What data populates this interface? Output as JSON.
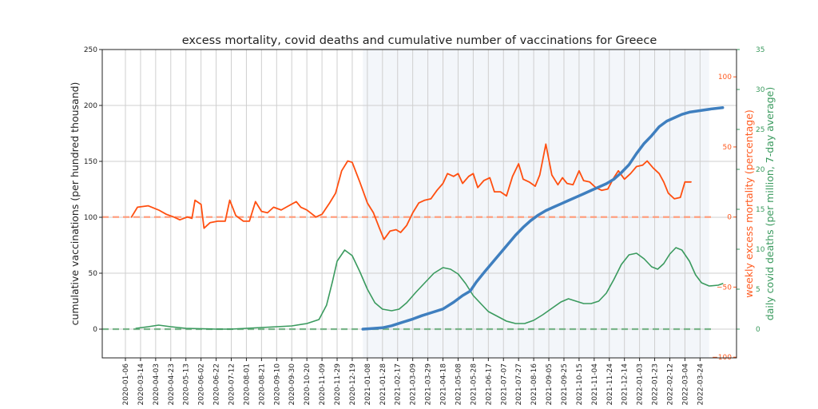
{
  "chart_data": {
    "type": "line",
    "title": "excess mortality, covid deaths and cumulative number of vaccinations for Greece",
    "xlabel": "",
    "x_tick_labels": [
      "2020-01-06",
      "2020-03-14",
      "2020-04-03",
      "2020-04-23",
      "2020-05-13",
      "2020-06-02",
      "2020-06-22",
      "2020-07-12",
      "2020-08-01",
      "2020-08-21",
      "2020-09-10",
      "2020-09-30",
      "2020-10-20",
      "2020-11-09",
      "2020-11-29",
      "2020-12-19",
      "2021-01-08",
      "2021-01-28",
      "2021-02-17",
      "2021-03-09",
      "2021-03-29",
      "2021-04-18",
      "2021-05-08",
      "2021-05-28",
      "2021-06-17",
      "2021-07-07",
      "2021-07-27",
      "2021-08-16",
      "2021-09-05",
      "2021-09-25",
      "2021-10-15",
      "2021-11-04",
      "2021-11-24",
      "2021-12-14",
      "2022-01-03",
      "2022-01-23",
      "2022-02-12",
      "2022-03-04",
      "2022-03-24"
    ],
    "x_axis_note": "x values below are positions in tick-index units (0 = first tick label)",
    "xlim_index": [
      -1.5,
      40.5
    ],
    "shaded_span_index": [
      15.7,
      38.6
    ],
    "grid": "vertical and horizontal (left axis)",
    "axes": {
      "left": {
        "label": "cumulative vaccinations (per hundred thousand)",
        "ticks": [
          0,
          50,
          100,
          150,
          200,
          250
        ],
        "ylim": [
          -25.7,
          250
        ],
        "color": "#000000"
      },
      "right_orange": {
        "label": "weekly excess mortality (percentage)",
        "ticks": [
          -100,
          -50,
          0,
          50,
          100
        ],
        "ylim": [
          -100.5,
          119.5
        ],
        "color": "#ff5a1f"
      },
      "right_green": {
        "label": "daily covid deaths (per million, 7-day average)",
        "ticks": [
          0,
          5,
          10,
          15,
          20,
          25,
          30,
          35
        ],
        "ylim": [
          -3.6,
          35
        ],
        "color": "#3a9a5e"
      }
    },
    "reference_lines": [
      {
        "axis": "right_orange",
        "value": 0,
        "style": "dashed",
        "color": "#ff9a78"
      },
      {
        "axis": "right_green",
        "value": 0,
        "style": "dashed",
        "color": "#7ab58a"
      }
    ],
    "series": [
      {
        "name": "weekly excess mortality (percentage)",
        "axis": "right_orange",
        "color": "#ff4f10",
        "points": [
          [
            0.4,
            0
          ],
          [
            0.8,
            7
          ],
          [
            1.5,
            8
          ],
          [
            2.2,
            5
          ],
          [
            2.7,
            2
          ],
          [
            3.2,
            0
          ],
          [
            3.6,
            -2
          ],
          [
            4.1,
            0
          ],
          [
            4.4,
            -1
          ],
          [
            4.6,
            12
          ],
          [
            5.0,
            9
          ],
          [
            5.2,
            -8
          ],
          [
            5.6,
            -4
          ],
          [
            6.1,
            -3
          ],
          [
            6.6,
            -3
          ],
          [
            6.9,
            12
          ],
          [
            7.3,
            1
          ],
          [
            7.8,
            -3
          ],
          [
            8.2,
            -3
          ],
          [
            8.6,
            11
          ],
          [
            9.0,
            4
          ],
          [
            9.4,
            3
          ],
          [
            9.8,
            7
          ],
          [
            10.3,
            5
          ],
          [
            10.8,
            8
          ],
          [
            11.3,
            11
          ],
          [
            11.6,
            7
          ],
          [
            12.0,
            5
          ],
          [
            12.6,
            0
          ],
          [
            13.0,
            2
          ],
          [
            13.5,
            10
          ],
          [
            13.9,
            17
          ],
          [
            14.3,
            33
          ],
          [
            14.7,
            40
          ],
          [
            15.0,
            39
          ],
          [
            15.5,
            25
          ],
          [
            16.0,
            10
          ],
          [
            16.4,
            3
          ],
          [
            16.8,
            -8
          ],
          [
            17.1,
            -16
          ],
          [
            17.5,
            -10
          ],
          [
            17.9,
            -9
          ],
          [
            18.2,
            -11
          ],
          [
            18.6,
            -6
          ],
          [
            19.0,
            3
          ],
          [
            19.4,
            10
          ],
          [
            19.8,
            12
          ],
          [
            20.2,
            13
          ],
          [
            20.6,
            19
          ],
          [
            21.0,
            24
          ],
          [
            21.3,
            31
          ],
          [
            21.7,
            29
          ],
          [
            22.0,
            31
          ],
          [
            22.3,
            24
          ],
          [
            22.7,
            29
          ],
          [
            23.0,
            31
          ],
          [
            23.3,
            21
          ],
          [
            23.7,
            26
          ],
          [
            24.1,
            28
          ],
          [
            24.4,
            18
          ],
          [
            24.8,
            18
          ],
          [
            25.2,
            15
          ],
          [
            25.6,
            29
          ],
          [
            26.0,
            38
          ],
          [
            26.3,
            27
          ],
          [
            26.7,
            25
          ],
          [
            27.1,
            22
          ],
          [
            27.4,
            30
          ],
          [
            27.8,
            52
          ],
          [
            28.2,
            30
          ],
          [
            28.6,
            23
          ],
          [
            28.9,
            28
          ],
          [
            29.2,
            24
          ],
          [
            29.6,
            23
          ],
          [
            30.0,
            33
          ],
          [
            30.3,
            26
          ],
          [
            30.7,
            25
          ],
          [
            31.1,
            21
          ],
          [
            31.5,
            19
          ],
          [
            31.9,
            20
          ],
          [
            32.3,
            28
          ],
          [
            32.6,
            33
          ],
          [
            33.0,
            27
          ],
          [
            33.4,
            31
          ],
          [
            33.8,
            36
          ],
          [
            34.2,
            37
          ],
          [
            34.5,
            40
          ],
          [
            34.9,
            35
          ],
          [
            35.3,
            31
          ],
          [
            35.6,
            25
          ],
          [
            35.9,
            17
          ],
          [
            36.3,
            13
          ],
          [
            36.7,
            14
          ],
          [
            37.0,
            25
          ],
          [
            37.4,
            25
          ]
        ]
      },
      {
        "name": "daily covid deaths (per million, 7-day average)",
        "axis": "right_green",
        "color": "#3a9a5e",
        "points": [
          [
            0.7,
            0.1
          ],
          [
            1.5,
            0.3
          ],
          [
            2.2,
            0.5
          ],
          [
            3.0,
            0.3
          ],
          [
            4.0,
            0.1
          ],
          [
            5.0,
            0.05
          ],
          [
            6.0,
            0.0
          ],
          [
            7.0,
            0.0
          ],
          [
            8.0,
            0.1
          ],
          [
            9.0,
            0.2
          ],
          [
            10.0,
            0.3
          ],
          [
            11.0,
            0.4
          ],
          [
            12.0,
            0.7
          ],
          [
            12.8,
            1.2
          ],
          [
            13.3,
            3.0
          ],
          [
            13.7,
            6.0
          ],
          [
            14.0,
            8.5
          ],
          [
            14.5,
            9.9
          ],
          [
            15.0,
            9.2
          ],
          [
            15.5,
            7.2
          ],
          [
            16.0,
            5.0
          ],
          [
            16.5,
            3.3
          ],
          [
            17.0,
            2.5
          ],
          [
            17.6,
            2.3
          ],
          [
            18.1,
            2.5
          ],
          [
            18.6,
            3.3
          ],
          [
            19.2,
            4.6
          ],
          [
            19.8,
            5.8
          ],
          [
            20.4,
            7.0
          ],
          [
            21.0,
            7.7
          ],
          [
            21.5,
            7.5
          ],
          [
            22.0,
            6.9
          ],
          [
            22.5,
            5.7
          ],
          [
            23.0,
            4.2
          ],
          [
            23.6,
            3.0
          ],
          [
            24.0,
            2.2
          ],
          [
            24.6,
            1.6
          ],
          [
            25.2,
            1.0
          ],
          [
            25.8,
            0.7
          ],
          [
            26.4,
            0.7
          ],
          [
            27.0,
            1.1
          ],
          [
            27.6,
            1.8
          ],
          [
            28.2,
            2.6
          ],
          [
            28.8,
            3.4
          ],
          [
            29.3,
            3.8
          ],
          [
            29.8,
            3.5
          ],
          [
            30.3,
            3.2
          ],
          [
            30.8,
            3.2
          ],
          [
            31.3,
            3.5
          ],
          [
            31.8,
            4.5
          ],
          [
            32.3,
            6.2
          ],
          [
            32.8,
            8.1
          ],
          [
            33.3,
            9.3
          ],
          [
            33.8,
            9.5
          ],
          [
            34.3,
            8.8
          ],
          [
            34.8,
            7.8
          ],
          [
            35.2,
            7.5
          ],
          [
            35.6,
            8.2
          ],
          [
            36.0,
            9.4
          ],
          [
            36.4,
            10.2
          ],
          [
            36.8,
            9.9
          ],
          [
            37.3,
            8.5
          ],
          [
            37.7,
            6.8
          ],
          [
            38.1,
            5.8
          ],
          [
            38.6,
            5.4
          ],
          [
            39.2,
            5.5
          ],
          [
            39.5,
            5.7
          ]
        ]
      },
      {
        "name": "cumulative vaccinations (per hundred thousand)",
        "axis": "left",
        "color": "#3f7fbf",
        "points": [
          [
            15.7,
            0
          ],
          [
            16.3,
            0.5
          ],
          [
            17.0,
            1.2
          ],
          [
            17.6,
            3
          ],
          [
            18.3,
            6
          ],
          [
            19.0,
            9
          ],
          [
            19.6,
            12
          ],
          [
            20.3,
            15
          ],
          [
            21.0,
            18
          ],
          [
            21.7,
            24
          ],
          [
            22.3,
            30
          ],
          [
            22.8,
            34
          ],
          [
            23.2,
            42
          ],
          [
            23.8,
            52
          ],
          [
            24.3,
            60
          ],
          [
            24.8,
            68
          ],
          [
            25.3,
            76
          ],
          [
            25.8,
            84
          ],
          [
            26.3,
            91
          ],
          [
            26.8,
            97
          ],
          [
            27.3,
            102
          ],
          [
            27.8,
            106
          ],
          [
            28.3,
            109
          ],
          [
            28.8,
            112
          ],
          [
            29.3,
            115
          ],
          [
            29.8,
            118
          ],
          [
            30.3,
            121
          ],
          [
            30.8,
            124
          ],
          [
            31.3,
            127
          ],
          [
            31.8,
            130
          ],
          [
            32.3,
            134
          ],
          [
            32.8,
            140
          ],
          [
            33.3,
            147
          ],
          [
            33.8,
            157
          ],
          [
            34.3,
            166
          ],
          [
            34.8,
            173
          ],
          [
            35.3,
            181
          ],
          [
            35.8,
            186
          ],
          [
            36.3,
            189
          ],
          [
            36.8,
            192
          ],
          [
            37.3,
            194
          ],
          [
            37.8,
            195
          ],
          [
            38.3,
            196
          ],
          [
            38.8,
            197
          ],
          [
            39.5,
            198
          ]
        ]
      }
    ]
  }
}
